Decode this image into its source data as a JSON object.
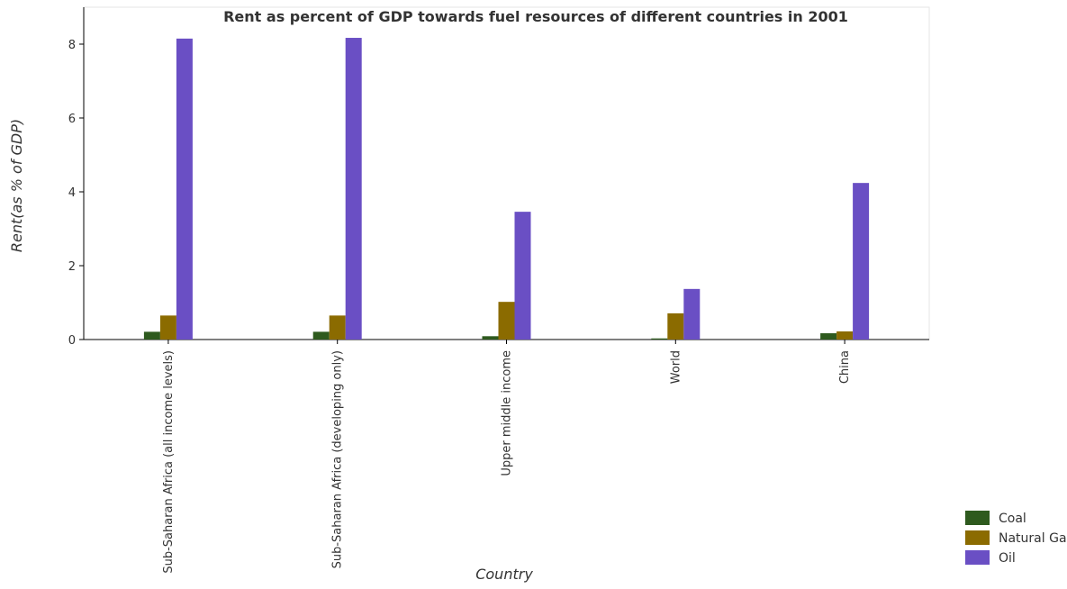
{
  "chart_data": {
    "type": "bar",
    "title": "Rent as percent of GDP towards fuel resources of different countries in 2001",
    "xlabel": "Country",
    "ylabel": "Rent(as % of GDP)",
    "categories": [
      "Sub-Saharan Africa (all income levels)",
      "Sub-Saharan Africa (developing only)",
      "Upper middle income",
      "World",
      "China"
    ],
    "series": [
      {
        "name": "Coal",
        "color": "#2e5a1e",
        "values": [
          0.21,
          0.21,
          0.09,
          0.03,
          0.17
        ]
      },
      {
        "name": "Natural Gas",
        "color": "#8b6b00",
        "values": [
          0.65,
          0.65,
          1.02,
          0.71,
          0.22
        ]
      },
      {
        "name": "Oil",
        "color": "#6a4fc4",
        "values": [
          8.15,
          8.17,
          3.46,
          1.37,
          4.24
        ]
      }
    ],
    "ylim": [
      0,
      9
    ],
    "yticks": [
      0,
      2,
      4,
      6,
      8
    ],
    "ytick_labels": [
      "0",
      "2",
      "4",
      "6",
      "8"
    ],
    "grid": false,
    "legend_position": "bottom-right"
  }
}
